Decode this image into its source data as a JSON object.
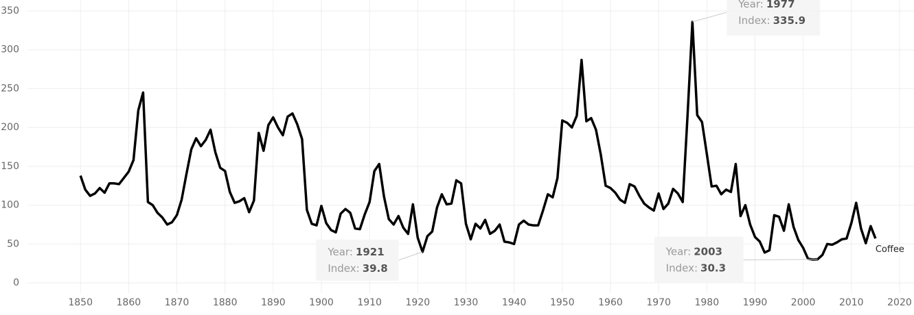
{
  "chart_data": {
    "type": "line",
    "x": [
      1850,
      1851,
      1852,
      1853,
      1854,
      1855,
      1856,
      1857,
      1858,
      1859,
      1860,
      1861,
      1862,
      1863,
      1864,
      1865,
      1866,
      1867,
      1868,
      1869,
      1870,
      1871,
      1872,
      1873,
      1874,
      1875,
      1876,
      1877,
      1878,
      1879,
      1880,
      1881,
      1882,
      1883,
      1884,
      1885,
      1886,
      1887,
      1888,
      1889,
      1890,
      1891,
      1892,
      1893,
      1894,
      1895,
      1896,
      1897,
      1898,
      1899,
      1900,
      1901,
      1902,
      1903,
      1904,
      1905,
      1906,
      1907,
      1908,
      1909,
      1910,
      1911,
      1912,
      1913,
      1914,
      1915,
      1916,
      1917,
      1918,
      1919,
      1920,
      1921,
      1922,
      1923,
      1924,
      1925,
      1926,
      1927,
      1928,
      1929,
      1930,
      1931,
      1932,
      1933,
      1934,
      1935,
      1936,
      1937,
      1938,
      1939,
      1940,
      1941,
      1942,
      1943,
      1944,
      1945,
      1946,
      1947,
      1948,
      1949,
      1950,
      1951,
      1952,
      1953,
      1954,
      1955,
      1956,
      1957,
      1958,
      1959,
      1960,
      1961,
      1962,
      1963,
      1964,
      1965,
      1966,
      1967,
      1968,
      1969,
      1970,
      1971,
      1972,
      1973,
      1974,
      1975,
      1976,
      1977,
      1978,
      1979,
      1980,
      1981,
      1982,
      1983,
      1984,
      1985,
      1986,
      1987,
      1988,
      1989,
      1990,
      1991,
      1992,
      1993,
      1994,
      1995,
      1996,
      1997,
      1998,
      1999,
      2000,
      2001,
      2002,
      2003,
      2004,
      2005,
      2006,
      2007,
      2008,
      2009,
      2010,
      2011,
      2012,
      2013,
      2014,
      2015
    ],
    "series": [
      {
        "name": "Coffee",
        "color": "#000000",
        "values": [
          138,
          120,
          112,
          115,
          122,
          116,
          128,
          128,
          127,
          135,
          143,
          158,
          222,
          245,
          104,
          100,
          90,
          84,
          75,
          78,
          87,
          107,
          140,
          172,
          186,
          176,
          184,
          197,
          168,
          148,
          144,
          117,
          103,
          105,
          109,
          91,
          106,
          193,
          170,
          203,
          213,
          200,
          190,
          214,
          218,
          204,
          185,
          94,
          76,
          74,
          99,
          77,
          68,
          65,
          89,
          95,
          90,
          70,
          69,
          88,
          104,
          144,
          153,
          111,
          82,
          75,
          86,
          71,
          63,
          101,
          58,
          39.8,
          60,
          66,
          97,
          114,
          101,
          102,
          132,
          128,
          76,
          56,
          76,
          70,
          81,
          63,
          67,
          75,
          53,
          52,
          50,
          75,
          80,
          75,
          74,
          74,
          93,
          114,
          110,
          135,
          209,
          206,
          200,
          215,
          287,
          208,
          212,
          197,
          165,
          125,
          122,
          116,
          107,
          103,
          127,
          124,
          112,
          102,
          97,
          93,
          115,
          95,
          102,
          121,
          115,
          104,
          215,
          335.9,
          216,
          207,
          166,
          124,
          125,
          114,
          120,
          117,
          153,
          86,
          100,
          75,
          59,
          53,
          39,
          42,
          87,
          85,
          67,
          101,
          72,
          55,
          45,
          31,
          30,
          30.3,
          36,
          50,
          49,
          52,
          56,
          57,
          77,
          103,
          70,
          51,
          73,
          57
        ]
      }
    ],
    "xlim": [
      1839,
      2023
    ],
    "xticks": [
      1850,
      1860,
      1870,
      1880,
      1890,
      1900,
      1910,
      1920,
      1930,
      1940,
      1950,
      1960,
      1970,
      1980,
      1990,
      2000,
      2010,
      2020
    ],
    "ylim": [
      0,
      350
    ],
    "yticks": [
      0,
      50,
      100,
      150,
      200,
      250,
      300,
      350
    ],
    "grid": true,
    "annotation_labels": {
      "x": "Year:",
      "y": "Index:"
    },
    "annotations": [
      {
        "x": 1921,
        "y": 39.8
      },
      {
        "x": 1977,
        "y": 335.9
      },
      {
        "x": 2003,
        "y": 30.3
      }
    ]
  }
}
